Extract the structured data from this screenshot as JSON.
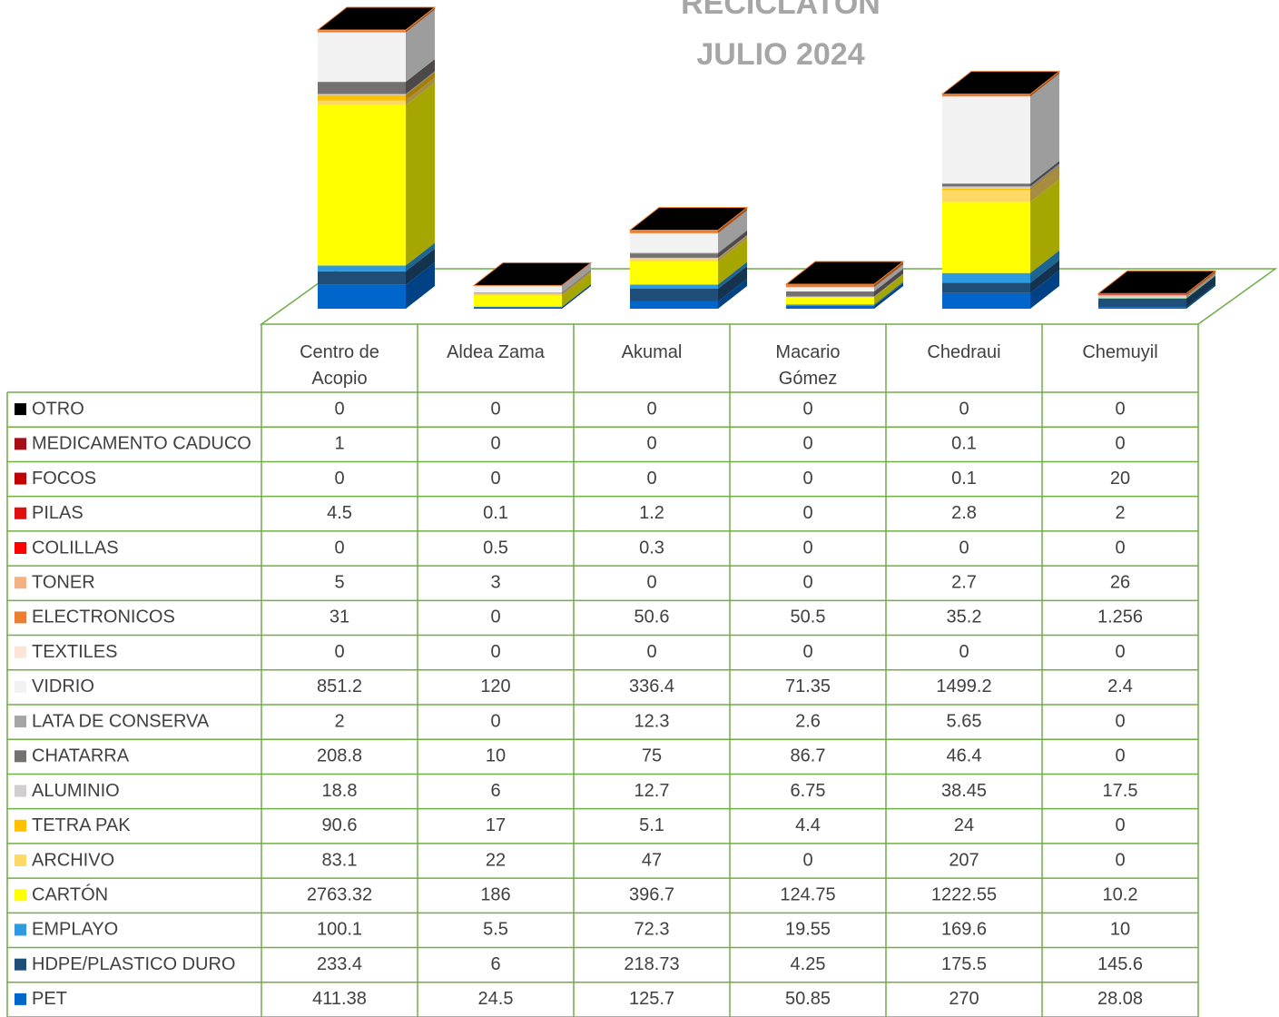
{
  "chart_data": {
    "type": "bar3d_stacked_table",
    "title": "RECICLATON",
    "subtitle": "JULIO 2024",
    "categories": [
      "Centro de Acopio",
      "Aldea Zama",
      "Akumal",
      "Macario Gómez",
      "Chedraui",
      "Chemuyil"
    ],
    "series": [
      {
        "name": "OTRO",
        "color": "#000000",
        "values": [
          0,
          0,
          0,
          0,
          0,
          0
        ]
      },
      {
        "name": "MEDICAMENTO CADUCO",
        "color": "#a50f15",
        "values": [
          1,
          0,
          0,
          0,
          0.1,
          0
        ]
      },
      {
        "name": "FOCOS",
        "color": "#c00000",
        "values": [
          0,
          0,
          0,
          0,
          0.1,
          20
        ]
      },
      {
        "name": "PILAS",
        "color": "#e01010",
        "values": [
          4.5,
          0.1,
          1.2,
          0,
          2.8,
          2
        ]
      },
      {
        "name": "COLILLAS",
        "color": "#ff0000",
        "values": [
          0,
          0.5,
          0.3,
          0,
          0,
          0
        ]
      },
      {
        "name": "TONER",
        "color": "#f4b183",
        "values": [
          5,
          3,
          0,
          0,
          2.7,
          26
        ]
      },
      {
        "name": "ELECTRONICOS",
        "color": "#ed7d31",
        "values": [
          31,
          0,
          50.6,
          50.5,
          35.2,
          1.256
        ]
      },
      {
        "name": "TEXTILES",
        "color": "#fbe5d6",
        "values": [
          0,
          0,
          0,
          0,
          0,
          0
        ]
      },
      {
        "name": "VIDRIO",
        "color": "#f2f2f2",
        "values": [
          851.2,
          120,
          336.4,
          71.35,
          1499.2,
          2.4
        ]
      },
      {
        "name": "LATA DE CONSERVA",
        "color": "#a5a5a5",
        "values": [
          2,
          0,
          12.3,
          2.6,
          5.65,
          0
        ]
      },
      {
        "name": "CHATARRA",
        "color": "#767171",
        "values": [
          208.8,
          10,
          75,
          86.7,
          46.4,
          0
        ]
      },
      {
        "name": "ALUMINIO",
        "color": "#d0cece",
        "values": [
          18.8,
          6,
          12.7,
          6.75,
          38.45,
          17.5
        ]
      },
      {
        "name": "TETRA PAK",
        "color": "#ffc000",
        "values": [
          90.6,
          17,
          5.1,
          4.4,
          24,
          0
        ]
      },
      {
        "name": "ARCHIVO",
        "color": "#ffd966",
        "values": [
          83.1,
          22,
          47,
          0,
          207,
          0
        ]
      },
      {
        "name": "CARTÓN",
        "color": "#ffff00",
        "values": [
          2763.32,
          186,
          396.7,
          124.75,
          1222.55,
          10.2
        ]
      },
      {
        "name": "EMPLAYO",
        "color": "#2e9ae0",
        "values": [
          100.1,
          5.5,
          72.3,
          19.55,
          169.6,
          10
        ]
      },
      {
        "name": "HDPE/PLASTICO DURO",
        "color": "#1f4e79",
        "values": [
          233.4,
          6,
          218.73,
          4.25,
          175.5,
          145.6
        ]
      },
      {
        "name": "PET",
        "color": "#0066cc",
        "values": [
          411.38,
          24.5,
          125.7,
          50.85,
          270,
          28.08
        ]
      }
    ]
  }
}
